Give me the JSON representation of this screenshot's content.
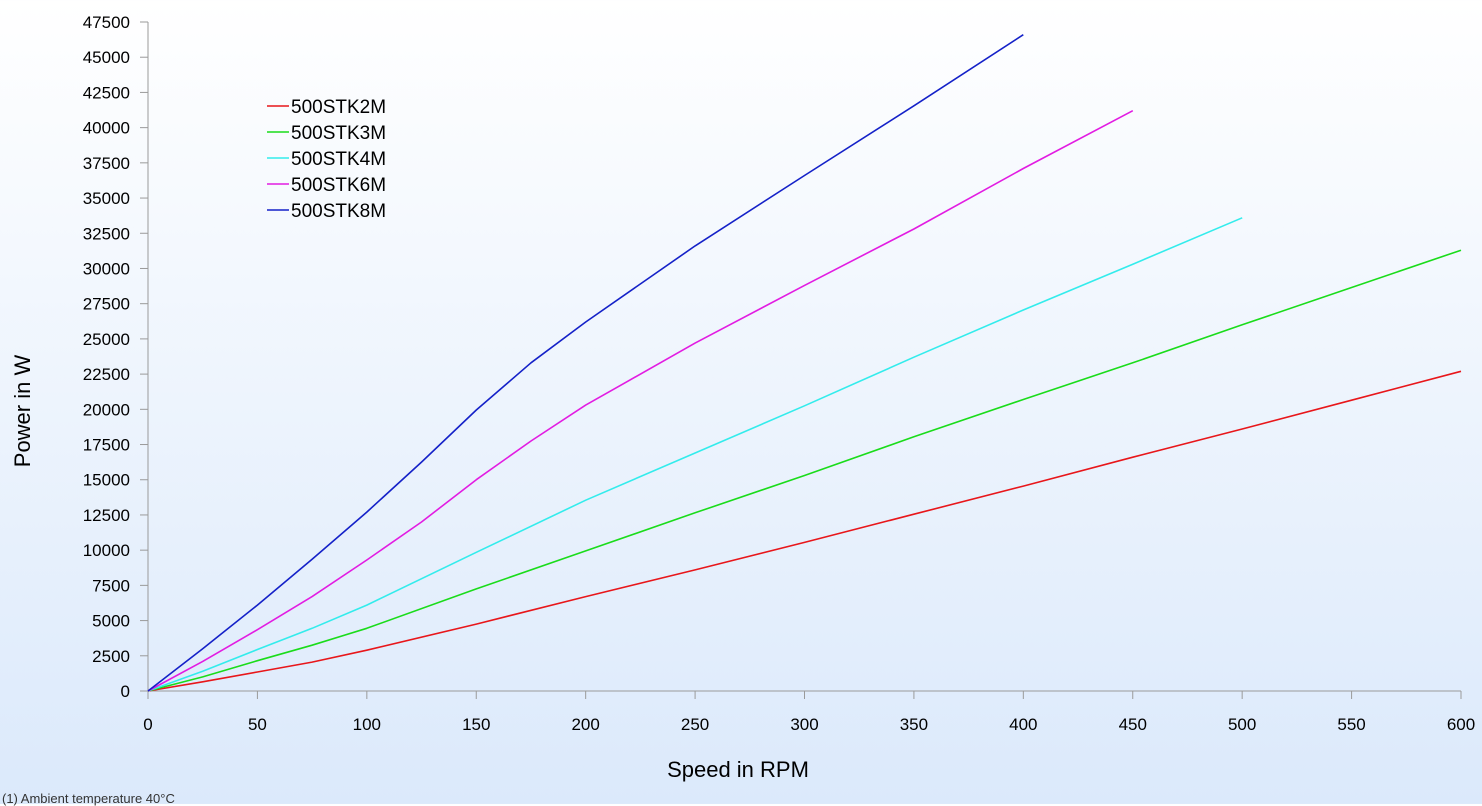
{
  "chart_data": {
    "type": "line",
    "xlabel": "Speed in RPM",
    "ylabel": "Power in W",
    "xlim": [
      0,
      600
    ],
    "ylim": [
      0,
      47500
    ],
    "x_ticks": [
      0,
      50,
      100,
      150,
      200,
      250,
      300,
      350,
      400,
      450,
      500,
      550,
      600
    ],
    "y_ticks": [
      0,
      2500,
      5000,
      7500,
      10000,
      12500,
      15000,
      17500,
      20000,
      22500,
      25000,
      27500,
      30000,
      32500,
      35000,
      37500,
      40000,
      42500,
      45000,
      47500
    ],
    "grid": false,
    "legend_position": "top-left",
    "series": [
      {
        "name": "500STK2M",
        "color": "#e8161a",
        "x": [
          0,
          25,
          50,
          75,
          100,
          150,
          200,
          250,
          300,
          350,
          400,
          450,
          500,
          550,
          600
        ],
        "y": [
          0,
          650,
          1350,
          2050,
          2900,
          4750,
          6700,
          8600,
          10550,
          12550,
          14550,
          16600,
          18600,
          20650,
          22700
        ]
      },
      {
        "name": "500STK3M",
        "color": "#1adc1a",
        "x": [
          0,
          25,
          50,
          75,
          100,
          150,
          200,
          250,
          300,
          350,
          400,
          450,
          500,
          550,
          600
        ],
        "y": [
          0,
          1000,
          2150,
          3250,
          4450,
          7250,
          9950,
          12650,
          15300,
          18050,
          20700,
          23300,
          26000,
          28650,
          31300
        ]
      },
      {
        "name": "500STK4M",
        "color": "#33ecec",
        "x": [
          0,
          25,
          50,
          75,
          100,
          150,
          200,
          250,
          300,
          350,
          400,
          450,
          500
        ],
        "y": [
          0,
          1400,
          2950,
          4450,
          6100,
          9850,
          13550,
          16900,
          20250,
          23700,
          27050,
          30300,
          33600
        ]
      },
      {
        "name": "500STK6M",
        "color": "#e21ce2",
        "x": [
          0,
          25,
          50,
          75,
          100,
          125,
          150,
          175,
          200,
          250,
          300,
          350,
          400,
          450
        ],
        "y": [
          0,
          2100,
          4350,
          6700,
          9300,
          12000,
          15000,
          17750,
          20300,
          24700,
          28800,
          32800,
          37100,
          41200
        ]
      },
      {
        "name": "500STK8M",
        "color": "#1421c8",
        "x": [
          0,
          25,
          50,
          75,
          100,
          125,
          150,
          175,
          200,
          250,
          300,
          350,
          400
        ],
        "y": [
          0,
          3000,
          6100,
          9350,
          12700,
          16250,
          19950,
          23300,
          26200,
          31600,
          36600,
          41550,
          46600
        ]
      }
    ],
    "footnote": "(1) Ambient temperature 40°C"
  }
}
